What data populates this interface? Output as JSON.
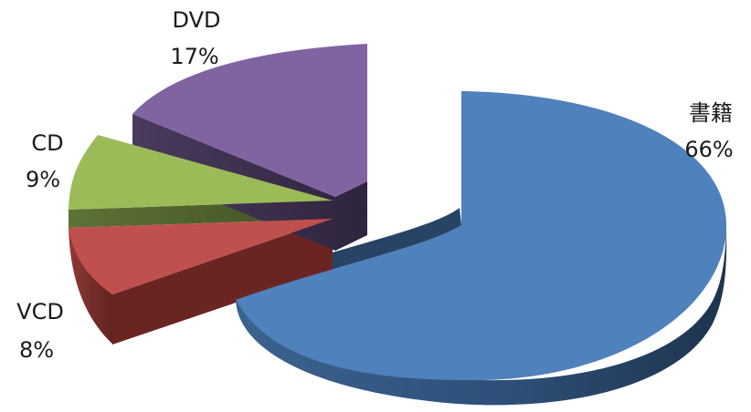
{
  "chart_data": {
    "type": "pie",
    "title": "",
    "categories": [
      "書籍",
      "VCD",
      "CD",
      "DVD"
    ],
    "values": [
      66,
      8,
      9,
      17
    ],
    "data_labels": [
      "66%",
      "8%",
      "9%",
      "17%"
    ],
    "colors": [
      "#4F81BD",
      "#C0504D",
      "#9BBB59",
      "#8064A2"
    ],
    "side_colors": [
      "#2B4B73",
      "#6F2A28",
      "#4C5F2A",
      "#3F3254"
    ],
    "exploded": true,
    "legend": "none"
  }
}
